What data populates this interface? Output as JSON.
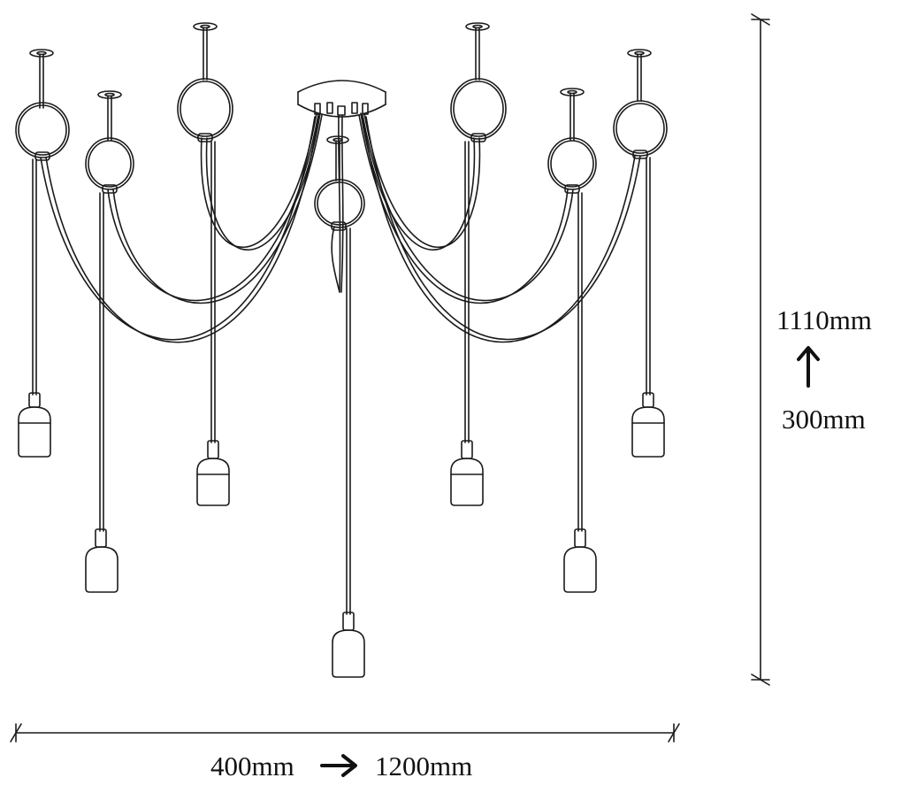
{
  "dimensions": {
    "width": {
      "min": "400mm",
      "max": "1200mm"
    },
    "height": {
      "min": "300mm",
      "max": "1110mm"
    }
  },
  "colors": {
    "line": "#1a1a1a",
    "background": "#ffffff"
  },
  "icons": {
    "width_arrow": "right-arrow-icon",
    "height_arrow": "up-arrow-icon"
  }
}
